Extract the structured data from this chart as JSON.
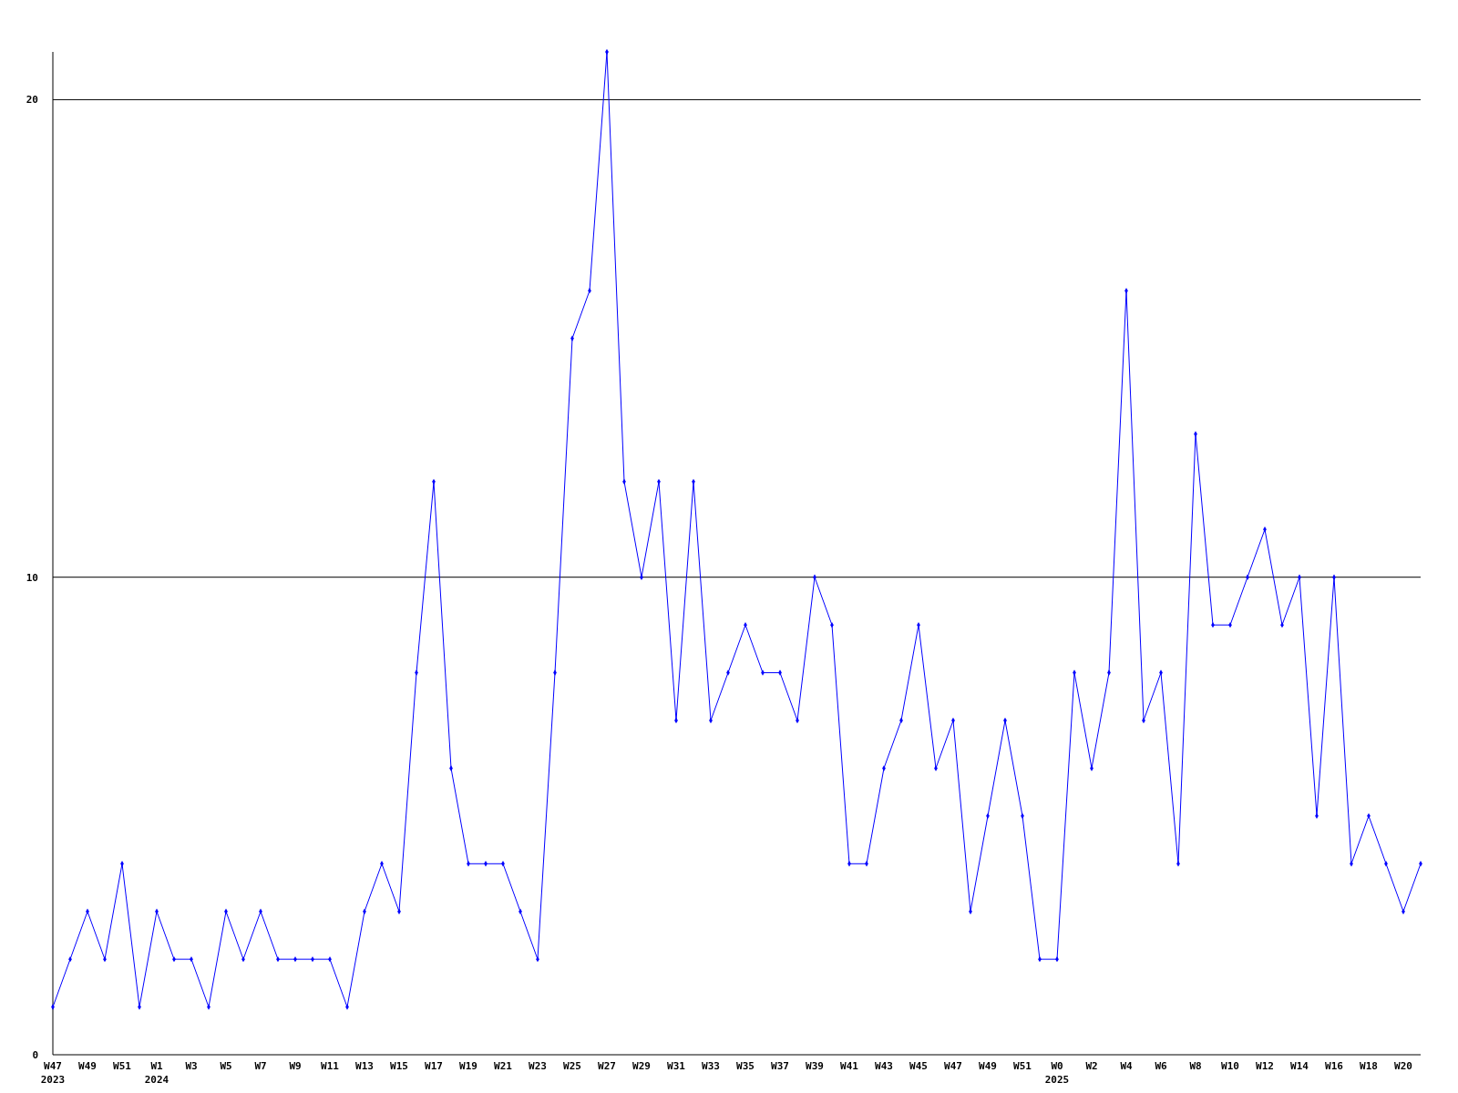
{
  "chart_data": {
    "type": "line",
    "categories": [
      "W47\n2023",
      null,
      "W49",
      null,
      "W51",
      null,
      "W1\n2024",
      null,
      "W3",
      null,
      "W5",
      null,
      "W7",
      null,
      "W9",
      null,
      "W11",
      null,
      "W13",
      null,
      "W15",
      null,
      "W17",
      null,
      "W19",
      null,
      "W21",
      null,
      "W23",
      null,
      "W25",
      null,
      "W27",
      null,
      "W29",
      null,
      "W31",
      null,
      "W33",
      null,
      "W35",
      null,
      "W37",
      null,
      "W39",
      null,
      "W41",
      null,
      "W43",
      null,
      "W45",
      null,
      "W47",
      null,
      "W49",
      null,
      "W51",
      null,
      "W0\n2025",
      null,
      "W2",
      null,
      "W4",
      null,
      "W6",
      null,
      "W8",
      null,
      "W10",
      null,
      "W12",
      null,
      "W14",
      null,
      "W16",
      null,
      "W18",
      null,
      "W20",
      null
    ],
    "series": [
      {
        "color": "#0000ff",
        "values": [
          1,
          2,
          3,
          2,
          4,
          1,
          3,
          2,
          2,
          1,
          3,
          2,
          3,
          2,
          2,
          2,
          2,
          1,
          3,
          4,
          3,
          8,
          12,
          6,
          4,
          4,
          4,
          3,
          2,
          8,
          15,
          16,
          21,
          12,
          10,
          12,
          7,
          12,
          7,
          8,
          9,
          8,
          8,
          7,
          10,
          9,
          4,
          4,
          6,
          7,
          9,
          6,
          7,
          3,
          5,
          7,
          5,
          2,
          2,
          8,
          6,
          8,
          16,
          7,
          8,
          4,
          13,
          9,
          9,
          10,
          11,
          9,
          10,
          5,
          10,
          4,
          5,
          4,
          3,
          4
        ]
      }
    ],
    "ylim": [
      0,
      21
    ],
    "yticks": [
      0,
      10,
      20
    ],
    "grid": "y",
    "marker": "diamond",
    "line_style": "solid"
  }
}
